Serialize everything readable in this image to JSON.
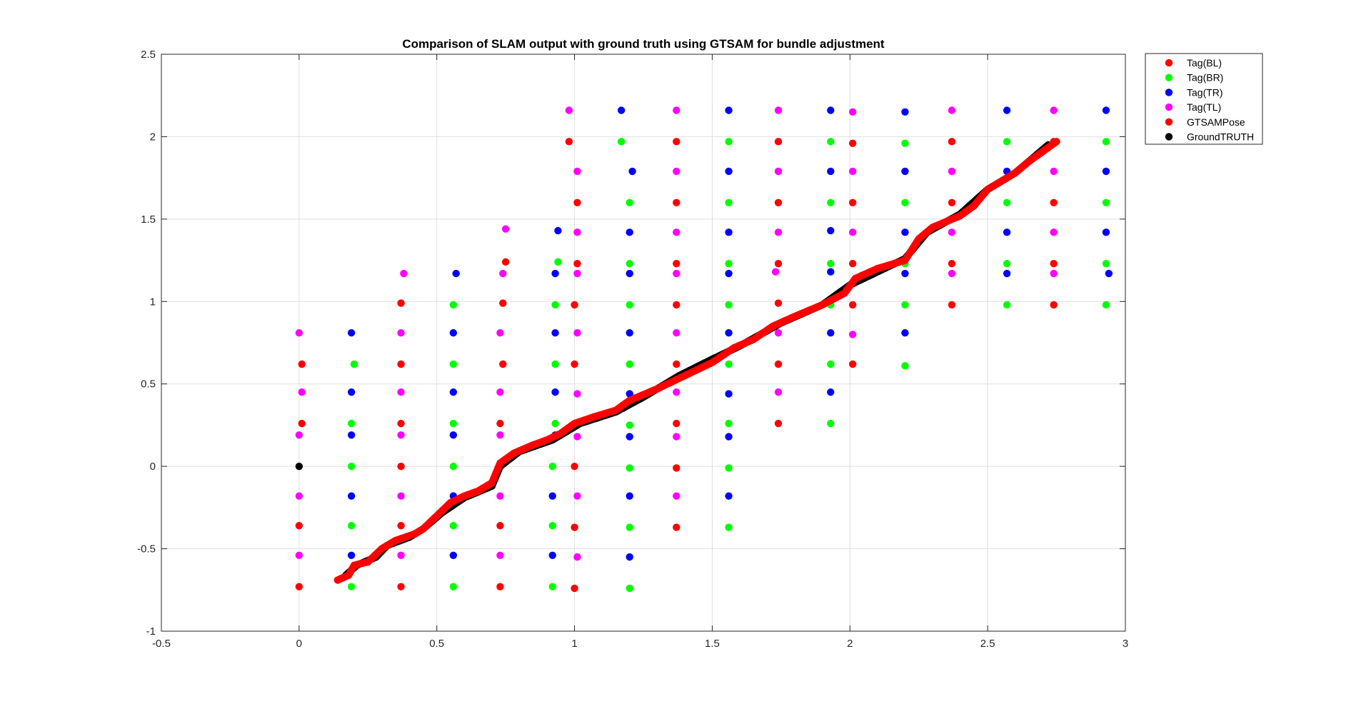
{
  "chart_data": {
    "type": "scatter",
    "title": "Comparison of SLAM output with ground truth using GTSAM for bundle adjustment",
    "xlabel": "",
    "ylabel": "",
    "xlim": [
      -0.5,
      3
    ],
    "ylim": [
      -1,
      2.5
    ],
    "grid": true,
    "legend_position": "outside-top-right",
    "x_ticks": [
      -0.5,
      0,
      0.5,
      1,
      1.5,
      2,
      2.5,
      3
    ],
    "y_ticks": [
      -1,
      -0.5,
      0,
      0.5,
      1,
      1.5,
      2,
      2.5
    ],
    "x_tick_labels": [
      "-0.5",
      "0",
      "0.5",
      "1",
      "1.5",
      "2",
      "2.5",
      "3"
    ],
    "y_tick_labels": [
      "-1",
      "-0.5",
      "0",
      "0.5",
      "1",
      "1.5",
      "2",
      "2.5"
    ],
    "legend": [
      "Tag(BL)",
      "Tag(BR)",
      "Tag(TR)",
      "Tag(TL)",
      "GTSAMPose",
      "GroundTRUTH"
    ],
    "series": [
      {
        "name": "Tag(BL)",
        "color": "#ff0000",
        "points": [
          [
            0,
            -0.73
          ],
          [
            0,
            -0.36
          ],
          [
            0.01,
            0.26
          ],
          [
            0.01,
            0.62
          ],
          [
            0.37,
            -0.73
          ],
          [
            0.37,
            -0.36
          ],
          [
            0.37,
            0
          ],
          [
            0.37,
            0.26
          ],
          [
            0.37,
            0.62
          ],
          [
            0.37,
            0.99
          ],
          [
            0.73,
            -0.73
          ],
          [
            0.73,
            -0.36
          ],
          [
            0.73,
            0.26
          ],
          [
            0.74,
            0.62
          ],
          [
            0.74,
            0.99
          ],
          [
            0.75,
            1.24
          ],
          [
            0.98,
            1.97
          ],
          [
            1,
            -0.74
          ],
          [
            1,
            -0.37
          ],
          [
            1,
            0
          ],
          [
            1,
            0.62
          ],
          [
            1,
            0.98
          ],
          [
            1.01,
            1.23
          ],
          [
            1.01,
            1.6
          ],
          [
            1.37,
            -0.37
          ],
          [
            1.37,
            -0.01
          ],
          [
            1.37,
            0.26
          ],
          [
            1.37,
            0.62
          ],
          [
            1.37,
            0.98
          ],
          [
            1.37,
            1.23
          ],
          [
            1.37,
            1.6
          ],
          [
            1.37,
            1.97
          ],
          [
            1.74,
            0.26
          ],
          [
            1.74,
            0.62
          ],
          [
            1.74,
            0.99
          ],
          [
            1.74,
            1.23
          ],
          [
            1.74,
            1.6
          ],
          [
            1.74,
            1.97
          ],
          [
            2.01,
            0.62
          ],
          [
            2.01,
            0.98
          ],
          [
            2.01,
            1.23
          ],
          [
            2.01,
            1.6
          ],
          [
            2.01,
            1.96
          ],
          [
            2.37,
            0.98
          ],
          [
            2.37,
            1.23
          ],
          [
            2.37,
            1.6
          ],
          [
            2.37,
            1.97
          ],
          [
            2.74,
            0.98
          ],
          [
            2.74,
            1.23
          ],
          [
            2.74,
            1.6
          ],
          [
            2.74,
            1.97
          ]
        ]
      },
      {
        "name": "Tag(BR)",
        "color": "#00ff00",
        "points": [
          [
            0.19,
            -0.73
          ],
          [
            0.19,
            -0.36
          ],
          [
            0.19,
            0
          ],
          [
            0.19,
            0.26
          ],
          [
            0.2,
            0.62
          ],
          [
            0.56,
            -0.73
          ],
          [
            0.56,
            -0.36
          ],
          [
            0.56,
            0
          ],
          [
            0.56,
            0.26
          ],
          [
            0.56,
            0.62
          ],
          [
            0.56,
            0.98
          ],
          [
            0.92,
            -0.73
          ],
          [
            0.92,
            -0.36
          ],
          [
            0.92,
            0
          ],
          [
            0.93,
            0.26
          ],
          [
            0.93,
            0.62
          ],
          [
            0.93,
            0.98
          ],
          [
            0.94,
            1.24
          ],
          [
            1.17,
            1.97
          ],
          [
            1.2,
            -0.74
          ],
          [
            1.2,
            -0.37
          ],
          [
            1.2,
            -0.01
          ],
          [
            1.2,
            0.25
          ],
          [
            1.2,
            0.62
          ],
          [
            1.2,
            0.98
          ],
          [
            1.2,
            1.23
          ],
          [
            1.2,
            1.6
          ],
          [
            1.56,
            -0.37
          ],
          [
            1.56,
            -0.01
          ],
          [
            1.56,
            0.26
          ],
          [
            1.56,
            0.62
          ],
          [
            1.56,
            0.98
          ],
          [
            1.56,
            1.23
          ],
          [
            1.56,
            1.6
          ],
          [
            1.56,
            1.97
          ],
          [
            1.93,
            0.26
          ],
          [
            1.93,
            0.62
          ],
          [
            1.93,
            0.98
          ],
          [
            1.93,
            1.23
          ],
          [
            1.93,
            1.6
          ],
          [
            1.93,
            1.97
          ],
          [
            2.2,
            0.61
          ],
          [
            2.2,
            0.98
          ],
          [
            2.2,
            1.23
          ],
          [
            2.2,
            1.6
          ],
          [
            2.2,
            1.96
          ],
          [
            2.57,
            0.98
          ],
          [
            2.57,
            1.23
          ],
          [
            2.57,
            1.6
          ],
          [
            2.57,
            1.97
          ],
          [
            2.93,
            0.98
          ],
          [
            2.93,
            1.23
          ],
          [
            2.93,
            1.6
          ],
          [
            2.93,
            1.97
          ]
        ]
      },
      {
        "name": "Tag(TR)",
        "color": "#0000ff",
        "points": [
          [
            0.19,
            -0.54
          ],
          [
            0.19,
            -0.18
          ],
          [
            0.19,
            0.19
          ],
          [
            0.19,
            0.45
          ],
          [
            0.19,
            0.81
          ],
          [
            0.56,
            -0.54
          ],
          [
            0.56,
            -0.18
          ],
          [
            0.56,
            0.19
          ],
          [
            0.56,
            0.45
          ],
          [
            0.56,
            0.81
          ],
          [
            0.57,
            1.17
          ],
          [
            0.92,
            -0.54
          ],
          [
            0.92,
            -0.18
          ],
          [
            0.93,
            0.19
          ],
          [
            0.93,
            0.45
          ],
          [
            0.93,
            0.81
          ],
          [
            0.93,
            1.17
          ],
          [
            0.94,
            1.43
          ],
          [
            1.17,
            2.16
          ],
          [
            1.2,
            -0.55
          ],
          [
            1.2,
            -0.18
          ],
          [
            1.2,
            0.18
          ],
          [
            1.2,
            0.44
          ],
          [
            1.2,
            0.81
          ],
          [
            1.2,
            1.17
          ],
          [
            1.2,
            1.42
          ],
          [
            1.21,
            1.79
          ],
          [
            1.56,
            -0.18
          ],
          [
            1.56,
            0.18
          ],
          [
            1.56,
            0.44
          ],
          [
            1.56,
            0.81
          ],
          [
            1.56,
            1.17
          ],
          [
            1.56,
            1.42
          ],
          [
            1.56,
            1.79
          ],
          [
            1.56,
            2.16
          ],
          [
            1.93,
            0.45
          ],
          [
            1.93,
            0.81
          ],
          [
            1.93,
            1.18
          ],
          [
            1.93,
            1.43
          ],
          [
            1.93,
            1.79
          ],
          [
            1.93,
            2.16
          ],
          [
            2.2,
            0.81
          ],
          [
            2.2,
            1.17
          ],
          [
            2.2,
            1.42
          ],
          [
            2.2,
            1.79
          ],
          [
            2.2,
            2.15
          ],
          [
            2.57,
            1.17
          ],
          [
            2.57,
            1.42
          ],
          [
            2.57,
            1.79
          ],
          [
            2.57,
            2.16
          ],
          [
            2.94,
            1.17
          ],
          [
            2.93,
            1.42
          ],
          [
            2.93,
            1.79
          ],
          [
            2.93,
            2.16
          ]
        ]
      },
      {
        "name": "Tag(TL)",
        "color": "#ff00ff",
        "points": [
          [
            0,
            -0.54
          ],
          [
            0,
            -0.18
          ],
          [
            0,
            0.19
          ],
          [
            0.01,
            0.45
          ],
          [
            0,
            0.81
          ],
          [
            0.37,
            -0.54
          ],
          [
            0.37,
            -0.18
          ],
          [
            0.37,
            0.19
          ],
          [
            0.37,
            0.45
          ],
          [
            0.37,
            0.81
          ],
          [
            0.38,
            1.17
          ],
          [
            0.73,
            -0.54
          ],
          [
            0.73,
            -0.18
          ],
          [
            0.73,
            0.19
          ],
          [
            0.73,
            0.45
          ],
          [
            0.73,
            0.81
          ],
          [
            0.74,
            1.17
          ],
          [
            0.75,
            1.44
          ],
          [
            0.98,
            2.16
          ],
          [
            1.01,
            -0.55
          ],
          [
            1.01,
            -0.18
          ],
          [
            1.01,
            0.18
          ],
          [
            1.01,
            0.44
          ],
          [
            1.01,
            0.81
          ],
          [
            1.01,
            1.17
          ],
          [
            1.01,
            1.42
          ],
          [
            1.01,
            1.79
          ],
          [
            1.37,
            -0.18
          ],
          [
            1.37,
            0.18
          ],
          [
            1.37,
            0.45
          ],
          [
            1.37,
            0.81
          ],
          [
            1.37,
            1.17
          ],
          [
            1.37,
            1.42
          ],
          [
            1.37,
            1.79
          ],
          [
            1.37,
            2.16
          ],
          [
            1.74,
            0.45
          ],
          [
            1.74,
            0.81
          ],
          [
            1.73,
            1.18
          ],
          [
            1.74,
            1.42
          ],
          [
            1.74,
            1.79
          ],
          [
            1.74,
            2.16
          ],
          [
            2.01,
            0.8
          ],
          [
            2.01,
            1.42
          ],
          [
            2.01,
            1.79
          ],
          [
            2.01,
            2.15
          ],
          [
            2.37,
            1.17
          ],
          [
            2.37,
            1.42
          ],
          [
            2.37,
            1.79
          ],
          [
            2.37,
            2.16
          ],
          [
            2.74,
            1.17
          ],
          [
            2.74,
            1.42
          ],
          [
            2.74,
            1.79
          ],
          [
            2.74,
            2.16
          ]
        ]
      },
      {
        "name": "GTSAMPose",
        "color": "#ff0000",
        "trajectory": true,
        "points": [
          [
            0.14,
            -0.69
          ],
          [
            0.18,
            -0.66
          ],
          [
            0.2,
            -0.6
          ],
          [
            0.25,
            -0.58
          ],
          [
            0.3,
            -0.5
          ],
          [
            0.35,
            -0.45
          ],
          [
            0.42,
            -0.41
          ],
          [
            0.45,
            -0.38
          ],
          [
            0.5,
            -0.3
          ],
          [
            0.55,
            -0.22
          ],
          [
            0.6,
            -0.18
          ],
          [
            0.65,
            -0.15
          ],
          [
            0.7,
            -0.1
          ],
          [
            0.73,
            0.02
          ],
          [
            0.78,
            0.08
          ],
          [
            0.85,
            0.13
          ],
          [
            0.9,
            0.16
          ],
          [
            0.95,
            0.2
          ],
          [
            1.0,
            0.26
          ],
          [
            1.07,
            0.3
          ],
          [
            1.15,
            0.34
          ],
          [
            1.2,
            0.4
          ],
          [
            1.3,
            0.47
          ],
          [
            1.4,
            0.55
          ],
          [
            1.5,
            0.63
          ],
          [
            1.58,
            0.72
          ],
          [
            1.65,
            0.77
          ],
          [
            1.72,
            0.85
          ],
          [
            1.8,
            0.91
          ],
          [
            1.9,
            0.98
          ],
          [
            1.98,
            1.05
          ],
          [
            2.02,
            1.14
          ],
          [
            2.1,
            1.2
          ],
          [
            2.2,
            1.25
          ],
          [
            2.25,
            1.38
          ],
          [
            2.3,
            1.45
          ],
          [
            2.4,
            1.52
          ],
          [
            2.45,
            1.58
          ],
          [
            2.5,
            1.68
          ],
          [
            2.6,
            1.78
          ],
          [
            2.65,
            1.85
          ],
          [
            2.75,
            1.97
          ]
        ]
      },
      {
        "name": "GroundTRUTH",
        "color": "#000000",
        "trajectory": true,
        "points": [
          [
            0.17,
            -0.66
          ],
          [
            0.21,
            -0.6
          ],
          [
            0.28,
            -0.55
          ],
          [
            0.32,
            -0.48
          ],
          [
            0.4,
            -0.43
          ],
          [
            0.45,
            -0.38
          ],
          [
            0.52,
            -0.28
          ],
          [
            0.6,
            -0.19
          ],
          [
            0.7,
            -0.12
          ],
          [
            0.73,
            0.0
          ],
          [
            0.8,
            0.09
          ],
          [
            0.92,
            0.16
          ],
          [
            1.02,
            0.26
          ],
          [
            1.15,
            0.33
          ],
          [
            1.25,
            0.42
          ],
          [
            1.38,
            0.55
          ],
          [
            1.5,
            0.65
          ],
          [
            1.6,
            0.73
          ],
          [
            1.75,
            0.87
          ],
          [
            1.9,
            0.98
          ],
          [
            2.0,
            1.1
          ],
          [
            2.2,
            1.26
          ],
          [
            2.28,
            1.42
          ],
          [
            2.4,
            1.53
          ],
          [
            2.5,
            1.68
          ],
          [
            2.6,
            1.78
          ],
          [
            2.72,
            1.95
          ]
        ],
        "extra_points": [
          [
            0,
            0
          ]
        ]
      }
    ]
  }
}
